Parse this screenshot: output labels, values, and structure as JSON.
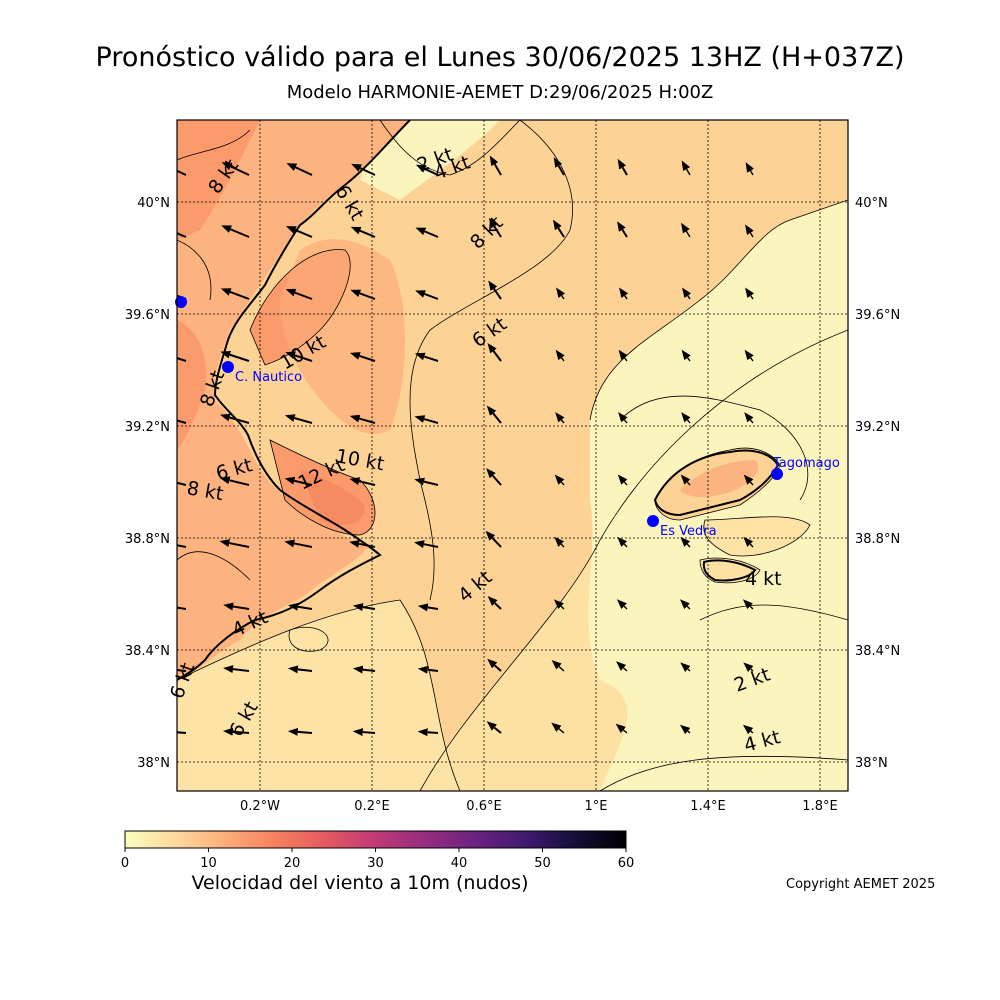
{
  "header": {
    "title": "Pronóstico válido para el Lunes 30/06/2025 13HZ (H+037Z)",
    "subtitle": "Modelo HARMONIE-AEMET D:29/06/2025 H:00Z"
  },
  "map": {
    "lat_labels": [
      "40°N",
      "39.6°N",
      "39.2°N",
      "38.8°N",
      "38.4°N",
      "38°N"
    ],
    "lon_labels": [
      "0.2°W",
      "0.2°E",
      "0.6°E",
      "1°E",
      "1.4°E",
      "1.8°E"
    ],
    "stations": [
      {
        "name": "C. Nautico"
      },
      {
        "name": "Es Vedra"
      },
      {
        "name": "Tagomago"
      },
      {
        "name": ""
      }
    ],
    "contour_labels": [
      "2 kt",
      "4 kt",
      "8 kt",
      "6 kt",
      "8 kt",
      "6 kt",
      "10 kt",
      "10 kt",
      "12 kt",
      "6 kt",
      "8 kt",
      "4 kt",
      "4 kt",
      "6 kt",
      "4 kt",
      "2 kt",
      "4 kt",
      "8 kt",
      "6 kt"
    ],
    "colors": {
      "sea_calm": "#fcf4bd",
      "light": "#fde4a6",
      "moderate": "#fdd295",
      "fresh": "#fcb37f",
      "strong": "#fb9a6b",
      "station": "#0000ff",
      "station_label": "#0000ff"
    }
  },
  "colorbar": {
    "ticks": [
      "0",
      "10",
      "20",
      "30",
      "40",
      "50",
      "60"
    ],
    "label": "Velocidad del viento a 10m (nudos)",
    "colormap": "magma_r"
  },
  "footer": {
    "copyright": "Copyright AEMET 2025"
  }
}
